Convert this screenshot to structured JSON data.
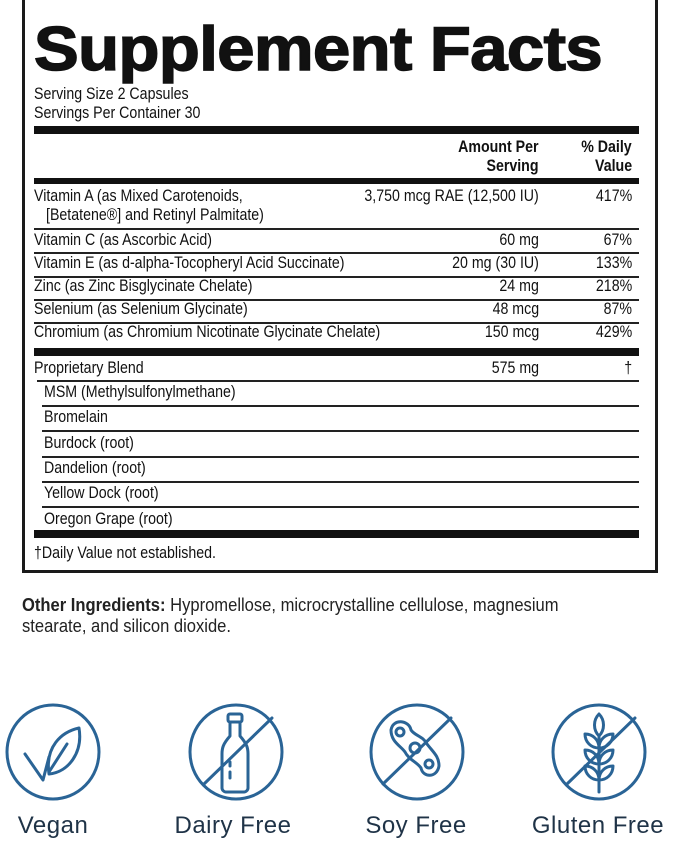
{
  "title": "Supplement Facts",
  "serving_size": "Serving Size 2 Capsules",
  "servings_per_container": "Servings Per Container 30",
  "headers": {
    "amount_1": "Amount Per",
    "amount_2": "Serving",
    "dv_1": "% Daily",
    "dv_2": "Value"
  },
  "nutrients": [
    {
      "name": "Vitamin A (as Mixed Carotenoids,",
      "name2": "[Betatene®] and Retinyl Palmitate)",
      "amount": "3,750 mcg RAE (12,500 IU)",
      "dv": "417%"
    },
    {
      "name": "Vitamin C (as Ascorbic Acid)",
      "amount": "60 mg",
      "dv": "67%"
    },
    {
      "name": "Vitamin E (as d-alpha-Tocopheryl Acid Succinate)",
      "amount": "20 mg (30 IU)",
      "dv": "133%"
    },
    {
      "name": "Zinc (as Zinc Bisglycinate Chelate)",
      "amount": "24 mg",
      "dv": "218%"
    },
    {
      "name": "Selenium (as Selenium Glycinate)",
      "amount": "48 mcg",
      "dv": "87%"
    },
    {
      "name": "Chromium (as Chromium Nicotinate Glycinate Chelate)",
      "amount": "150 mcg",
      "dv": "429%"
    }
  ],
  "blend": {
    "name": "Proprietary Blend",
    "amount": "575 mg",
    "dv": "†",
    "items": [
      "MSM (Methylsulfonylmethane)",
      "Bromelain",
      "Burdock (root)",
      "Dandelion (root)",
      "Yellow Dock (root)",
      "Oregon Grape (root)"
    ]
  },
  "footnote": "†Daily Value not established.",
  "other_ingredients": {
    "label": "Other Ingredients:",
    "text": " Hypromellose, microcrystalline cellulose, magnesium stearate, and silicon dioxide."
  },
  "badges": [
    {
      "label": "Vegan",
      "icon": "leaf-check-icon"
    },
    {
      "label": "Dairy Free",
      "icon": "no-milk-bottle-icon"
    },
    {
      "label": "Soy Free",
      "icon": "no-soybean-icon"
    },
    {
      "label": "Gluten Free",
      "icon": "no-wheat-icon"
    }
  ],
  "colors": {
    "icon": "#2a6496",
    "badge_text": "#1f3347"
  }
}
